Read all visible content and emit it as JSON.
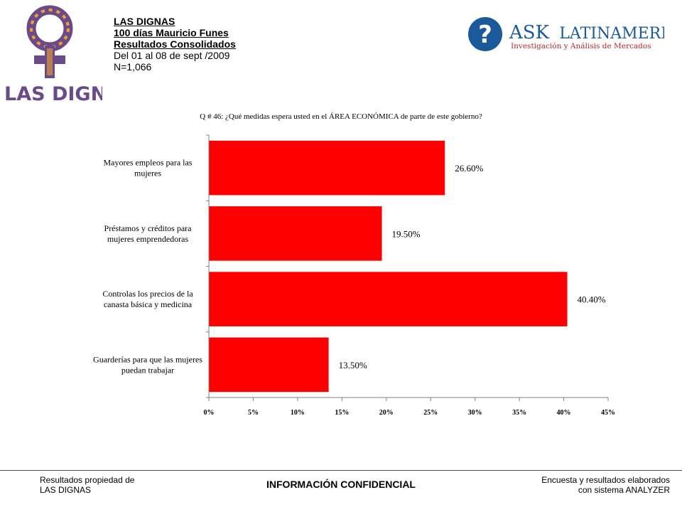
{
  "header": {
    "logo_left_text": "LAS DIGNAS",
    "lines": [
      "LAS DIGNAS",
      "100 días Mauricio Funes",
      "Resultados Consolidados",
      "Del 01 al 08 de sept /2009",
      "N=1,066"
    ],
    "logo_right_brand_ask": "ASK",
    "logo_right_brand_rest": "LATINAMERICA",
    "logo_right_tagline": "Investigación y Análisis de Mercados"
  },
  "question": "Q # 46: ¿Qué medidas espera usted en el ÁREA ECONÓMICA de parte de este gobierno?",
  "chart_data": {
    "type": "bar",
    "orientation": "horizontal",
    "categories": [
      [
        "Mayores empleos para las",
        "mujeres"
      ],
      [
        "Préstamos y créditos para",
        "mujeres emprendedoras"
      ],
      [
        "Controlas los precios de la",
        "canasta básica y medicina"
      ],
      [
        "Guarderías para que las mujeres",
        "puedan trabajar"
      ]
    ],
    "values": [
      26.6,
      19.5,
      40.4,
      13.5
    ],
    "value_labels": [
      "26.60%",
      "19.50%",
      "40.40%",
      "13.50%"
    ],
    "xlim": [
      0,
      45
    ],
    "x_ticks": [
      0,
      5,
      10,
      15,
      20,
      25,
      30,
      35,
      40,
      45
    ],
    "x_tick_labels": [
      "0%",
      "5%",
      "10%",
      "15%",
      "20%",
      "25%",
      "30%",
      "35%",
      "40%",
      "45%"
    ],
    "grid": false,
    "bar_color": "#ff0000"
  },
  "footer": {
    "left": [
      "Resultados propiedad de",
      "LAS DIGNAS"
    ],
    "center": "INFORMACIÓN CONFIDENCIAL",
    "right": [
      "Encuesta y resultados elaborados",
      "con sistema ANALYZER"
    ]
  }
}
